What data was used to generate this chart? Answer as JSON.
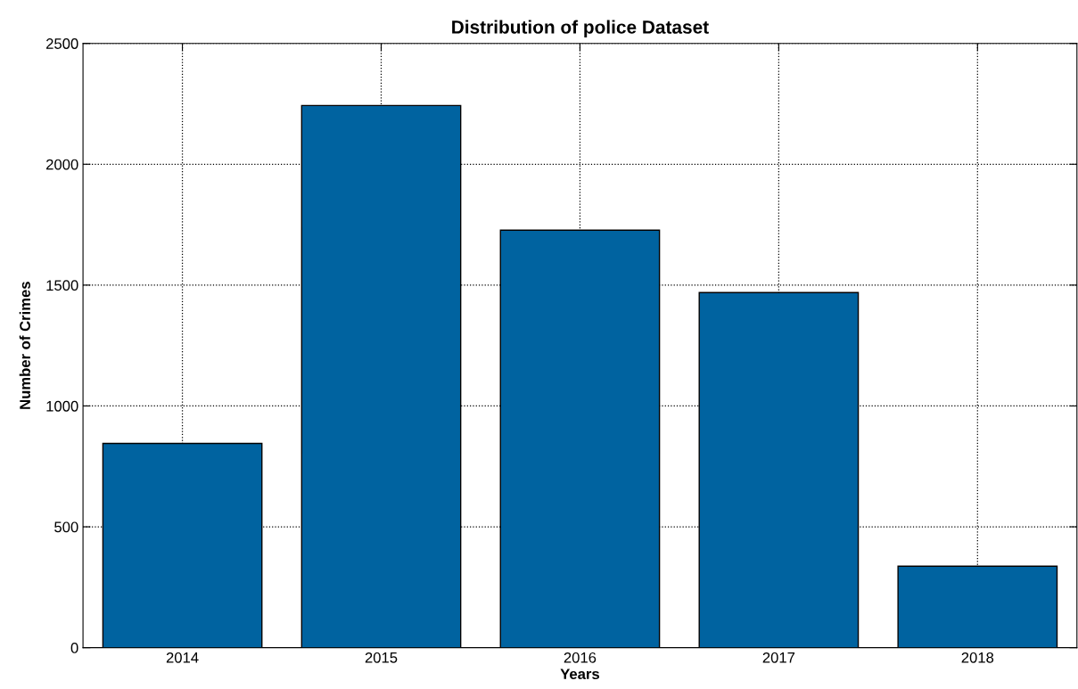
{
  "chart_data": {
    "type": "bar",
    "title": "Distribution of police Dataset",
    "xlabel": "Years",
    "ylabel": "Number of Crimes",
    "categories": [
      "2014",
      "2015",
      "2016",
      "2017",
      "2018"
    ],
    "values": [
      845,
      2243,
      1727,
      1469,
      337
    ],
    "color": "#0063a0",
    "ylim": [
      0,
      2500
    ],
    "yticks": [
      0,
      500,
      1000,
      1500,
      2000,
      2500
    ],
    "grid": true
  }
}
